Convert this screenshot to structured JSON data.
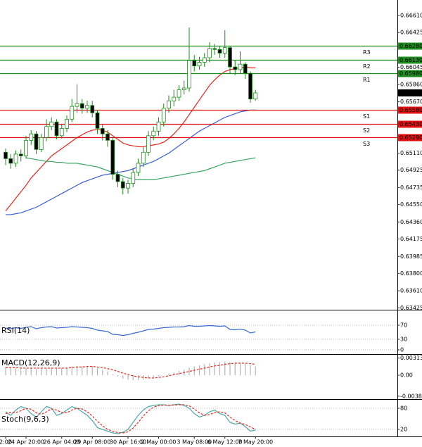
{
  "chart_data": [
    {
      "type": "candlestick",
      "categories": [
        "2:00",
        null,
        null,
        null,
        "24 Apr 20:00",
        null,
        null,
        null,
        null,
        null,
        null,
        "26 Apr 04:00",
        null,
        null,
        null,
        null,
        null,
        "29 Apr 08:00",
        null,
        null,
        null,
        null,
        null,
        null,
        "30 Apr 16:00",
        null,
        null,
        null,
        null,
        null,
        "2 May 00:00",
        null,
        null,
        null,
        null,
        null,
        null,
        "3 May 08:00",
        null,
        null,
        null,
        null,
        null,
        "6 May 12:00",
        null,
        null,
        null,
        null,
        null,
        "7 May 20:00"
      ],
      "open": [
        0.6512,
        0.6505,
        0.65,
        0.651,
        0.6508,
        0.6525,
        0.6532,
        0.6515,
        0.6528,
        0.654,
        0.6545,
        0.653,
        0.6538,
        0.6548,
        0.6562,
        0.6565,
        0.656,
        0.6563,
        0.6555,
        0.6538,
        0.6532,
        0.6525,
        0.6488,
        0.648,
        0.6473,
        0.6478,
        0.649,
        0.65,
        0.6512,
        0.653,
        0.6535,
        0.6545,
        0.656,
        0.6568,
        0.6572,
        0.658,
        0.6582,
        0.6612,
        0.6606,
        0.661,
        0.6615,
        0.6625,
        0.6624,
        0.662,
        0.6626,
        0.6605,
        0.6602,
        0.6608,
        0.6598,
        0.657
      ],
      "high": [
        0.6516,
        0.651,
        0.6514,
        0.6515,
        0.653,
        0.6536,
        0.6535,
        0.6532,
        0.6548,
        0.655,
        0.6548,
        0.6542,
        0.6552,
        0.657,
        0.6586,
        0.657,
        0.6568,
        0.6568,
        0.6558,
        0.6542,
        0.6536,
        0.6528,
        0.6492,
        0.6484,
        0.6482,
        0.6494,
        0.6505,
        0.6518,
        0.6535,
        0.654,
        0.655,
        0.6565,
        0.6574,
        0.658,
        0.6585,
        0.659,
        0.6648,
        0.6618,
        0.6616,
        0.662,
        0.6632,
        0.663,
        0.6628,
        0.6645,
        0.6628,
        0.6612,
        0.6622,
        0.661,
        0.66,
        0.658
      ],
      "low": [
        0.6498,
        0.6494,
        0.6496,
        0.6502,
        0.6505,
        0.652,
        0.651,
        0.6512,
        0.6524,
        0.6536,
        0.6526,
        0.6527,
        0.6534,
        0.6545,
        0.6555,
        0.6554,
        0.6555,
        0.655,
        0.6532,
        0.6525,
        0.6518,
        0.6482,
        0.6474,
        0.6466,
        0.6467,
        0.6474,
        0.6486,
        0.6496,
        0.6508,
        0.6525,
        0.653,
        0.654,
        0.6555,
        0.6562,
        0.6568,
        0.6575,
        0.6578,
        0.66,
        0.6602,
        0.6605,
        0.661,
        0.6618,
        0.6615,
        0.6615,
        0.6598,
        0.6596,
        0.6598,
        0.6592,
        0.6566,
        0.6568
      ],
      "close": [
        0.6505,
        0.65,
        0.651,
        0.6508,
        0.6525,
        0.6532,
        0.6515,
        0.6528,
        0.654,
        0.6545,
        0.653,
        0.6538,
        0.6548,
        0.6562,
        0.6565,
        0.656,
        0.6563,
        0.6555,
        0.6538,
        0.6532,
        0.6525,
        0.6488,
        0.648,
        0.6473,
        0.6478,
        0.649,
        0.65,
        0.6512,
        0.653,
        0.6535,
        0.6545,
        0.656,
        0.6568,
        0.6572,
        0.658,
        0.6582,
        0.6612,
        0.6606,
        0.661,
        0.6615,
        0.6625,
        0.6624,
        0.662,
        0.6626,
        0.6605,
        0.6602,
        0.6608,
        0.6598,
        0.657,
        0.65767
      ],
      "series": [
        {
          "color": "#e8261c",
          "values": [
            0.6448,
            0.6455,
            0.6462,
            0.6469,
            0.6476,
            0.6484,
            0.649,
            0.6496,
            0.6502,
            0.6508,
            0.6512,
            0.6516,
            0.652,
            0.6524,
            0.6528,
            0.6531,
            0.6534,
            0.6536,
            0.6537,
            0.6536,
            0.6534,
            0.653,
            0.6526,
            0.6522,
            0.652,
            0.6519,
            0.6518,
            0.6518,
            0.6519,
            0.652,
            0.6521,
            0.6523,
            0.6527,
            0.6532,
            0.6538,
            0.6545,
            0.6553,
            0.6561,
            0.6569,
            0.6577,
            0.6585,
            0.6591,
            0.6596,
            0.66,
            0.6602,
            0.6603,
            0.6604,
            0.6605,
            0.6604,
            0.6604
          ]
        },
        {
          "color": "#3a5fd0",
          "values": [
            0.6444,
            0.6444,
            0.6445,
            0.6446,
            0.6448,
            0.645,
            0.6452,
            0.6455,
            0.6458,
            0.6461,
            0.6464,
            0.6467,
            0.647,
            0.6473,
            0.6476,
            0.6479,
            0.6481,
            0.6483,
            0.6485,
            0.6487,
            0.6488,
            0.6489,
            0.649,
            0.6491,
            0.6492,
            0.6494,
            0.6496,
            0.6498,
            0.65,
            0.6502,
            0.6505,
            0.6508,
            0.6511,
            0.6515,
            0.6519,
            0.6523,
            0.6527,
            0.6531,
            0.6535,
            0.6538,
            0.6541,
            0.6544,
            0.6547,
            0.655,
            0.6552,
            0.6554,
            0.6556,
            0.6557,
            0.6558,
            0.6558
          ]
        },
        {
          "color": "#3aa564",
          "values": [
            null,
            null,
            null,
            null,
            0.6506,
            0.6505,
            0.6504,
            0.6503,
            0.6502,
            0.6502,
            0.6501,
            0.6501,
            0.65,
            0.65,
            0.65,
            0.6499,
            0.6498,
            0.6497,
            0.6496,
            0.6494,
            0.6492,
            0.649,
            0.6488,
            0.6486,
            0.6484,
            0.6483,
            0.6482,
            0.6482,
            0.6482,
            0.6482,
            0.6483,
            0.6484,
            0.6485,
            0.6486,
            0.6487,
            0.6488,
            0.6489,
            0.649,
            0.6491,
            0.6492,
            0.6494,
            0.6496,
            0.6498,
            0.65,
            0.6501,
            0.6502,
            0.6503,
            0.6504,
            0.6505,
            0.6506
          ]
        }
      ],
      "levels": [
        {
          "name": "R3",
          "value": 0.6628,
          "label": "0.66280",
          "color": "#1e8c1e"
        },
        {
          "name": "R2",
          "value": 0.6613,
          "label": "0.66130",
          "color": "#1e8c1e"
        },
        {
          "name": "R1",
          "value": 0.6598,
          "label": "0.65980",
          "color": "#1e8c1e"
        },
        {
          "name": "S1",
          "value": 0.6558,
          "label": "0.65580",
          "color": "#e01010"
        },
        {
          "name": "S2",
          "value": 0.6543,
          "label": "0.65430",
          "color": "#e01010"
        },
        {
          "name": "S3",
          "value": 0.6528,
          "label": "0.65280",
          "color": "#e01010"
        }
      ],
      "ylim": [
        0.63404,
        0.66779
      ],
      "yticks": [
        {
          "value": 0.6661,
          "label": "0.66610"
        },
        0.66425,
        0.66045,
        {
          "value": 0.6586,
          "label": "0.65860"
        },
        {
          "value": 0.6567,
          "label": "0.65670"
        },
        {
          "value": 0.6511,
          "label": "0.65110"
        },
        0.64925,
        0.64735,
        {
          "value": 0.6455,
          "label": "0.64550"
        },
        {
          "value": 0.6436,
          "label": "0.64360"
        },
        0.64175,
        0.63985,
        {
          "value": 0.638,
          "label": "0.63800"
        },
        {
          "value": 0.6361,
          "label": "0.63610"
        },
        0.63425
      ]
    },
    {
      "type": "line",
      "title": "RSI(14)",
      "ylim": [
        0,
        100
      ],
      "yticks": [
        70,
        30,
        0
      ],
      "series": [
        {
          "color": "#3b6ccf",
          "values": [
            62,
            60,
            63,
            61,
            64,
            66,
            60,
            63,
            65,
            66,
            62,
            63,
            64,
            66,
            65,
            64,
            63,
            61,
            56,
            54,
            52,
            44,
            43,
            41,
            43,
            47,
            50,
            54,
            58,
            59,
            61,
            63,
            64,
            65,
            65,
            66,
            69,
            67,
            67,
            68,
            69,
            68,
            67,
            68,
            58,
            57,
            59,
            56,
            48,
            51
          ]
        }
      ]
    },
    {
      "type": "bar",
      "title": "MACD(12,26,9)",
      "ylim": [
        -0.0041,
        0.0036
      ],
      "yticks": [
        0.00313,
        {
          "value": 0,
          "label": "0.00"
        },
        -0.003827
      ],
      "color": "#b4b4b4",
      "values": [
        0.0015,
        0.0013,
        0.0013,
        0.0012,
        0.0013,
        0.0014,
        0.0012,
        0.0012,
        0.0013,
        0.0014,
        0.0013,
        0.0013,
        0.0014,
        0.0016,
        0.0017,
        0.0017,
        0.0017,
        0.0016,
        0.0013,
        0.001,
        0.0007,
        0.0002,
        -0.0002,
        -0.0006,
        -0.0008,
        -0.0009,
        -0.0009,
        -0.0008,
        -0.0006,
        -0.0004,
        -0.0002,
        0.0,
        0.0003,
        0.0005,
        0.0008,
        0.001,
        0.0014,
        0.0016,
        0.0018,
        0.002,
        0.0022,
        0.0023,
        0.0024,
        0.0025,
        0.0024,
        0.0023,
        0.0022,
        0.0021,
        0.0018,
        0.0016
      ],
      "series": [
        {
          "color": "#e8261c",
          "values": [
            0.0014,
            0.0014,
            0.0014,
            0.0013,
            0.0013,
            0.0013,
            0.0013,
            0.0013,
            0.0013,
            0.0013,
            0.0013,
            0.0013,
            0.0013,
            0.0014,
            0.0015,
            0.0015,
            0.0016,
            0.0016,
            0.0015,
            0.0014,
            0.0012,
            0.001,
            0.0007,
            0.0004,
            0.0001,
            -0.0001,
            -0.0003,
            -0.0004,
            -0.0005,
            -0.0005,
            -0.0004,
            -0.0003,
            -0.0001,
            0.0001,
            0.0003,
            0.0005,
            0.0007,
            0.0009,
            0.0011,
            0.0013,
            0.0015,
            0.0017,
            0.0018,
            0.002,
            0.0021,
            0.0022,
            0.0022,
            0.0022,
            0.0021,
            0.002
          ]
        }
      ]
    },
    {
      "type": "line",
      "title": "Stoch(9,6,3)",
      "ylim": [
        0,
        100
      ],
      "yticks": [
        80,
        20
      ],
      "series": [
        {
          "color": "#4fa8a8",
          "values": [
            70,
            60,
            75,
            85,
            80,
            65,
            55,
            70,
            85,
            80,
            60,
            65,
            75,
            85,
            80,
            70,
            60,
            45,
            25,
            20,
            15,
            10,
            8,
            12,
            20,
            40,
            60,
            75,
            85,
            88,
            90,
            90,
            88,
            90,
            92,
            88,
            80,
            65,
            55,
            60,
            70,
            75,
            65,
            60,
            40,
            35,
            38,
            28,
            15,
            18
          ]
        },
        {
          "color": "#e8261c",
          "values": [
            65,
            68,
            68,
            73,
            80,
            77,
            67,
            63,
            70,
            78,
            75,
            68,
            67,
            75,
            80,
            78,
            70,
            58,
            43,
            30,
            20,
            15,
            11,
            10,
            13,
            24,
            40,
            58,
            73,
            83,
            88,
            89,
            89,
            89,
            90,
            90,
            87,
            78,
            67,
            60,
            62,
            68,
            70,
            67,
            55,
            45,
            38,
            34,
            27,
            20
          ]
        }
      ]
    }
  ]
}
